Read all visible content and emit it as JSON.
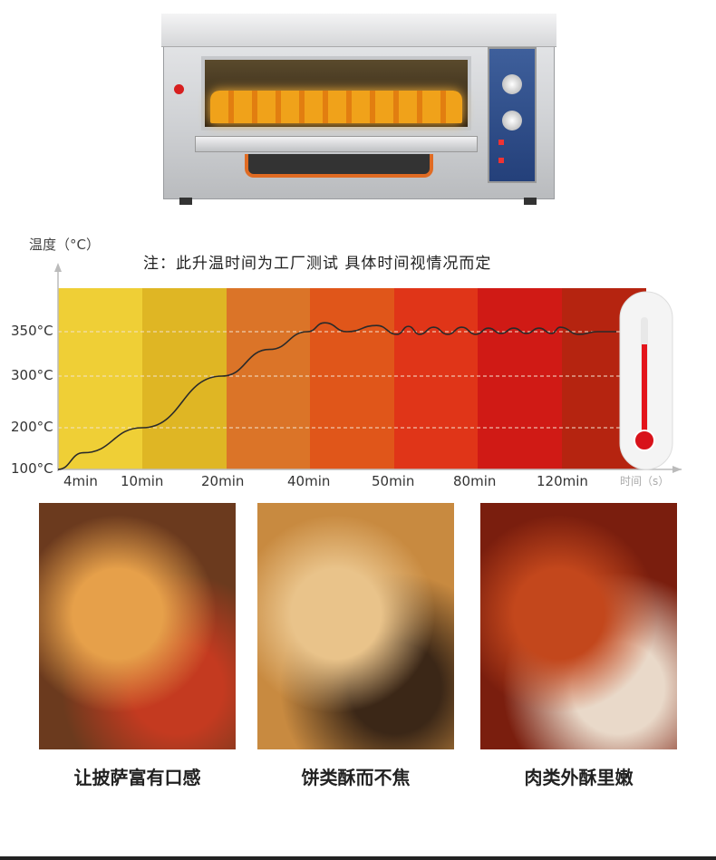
{
  "chart_data": {
    "type": "line",
    "title": "注：此升温时间为工厂测试  具体时间视情况而定",
    "ylabel": "温度（°C）",
    "xlabel": "时间（s）",
    "x_tick_labels": [
      "4min",
      "10min",
      "20min",
      "40min",
      "50min",
      "80min",
      "120min"
    ],
    "y_tick_labels": [
      "350°C",
      "300°C",
      "200°C",
      "100°C"
    ],
    "y_ticks": [
      350,
      300,
      200,
      100
    ],
    "grid": true,
    "band_colors": [
      "#efcf36",
      "#dfb624",
      "#db7428",
      "#e0561a",
      "#e03518",
      "#d01a15",
      "#b52410"
    ],
    "line_color": "#2a2a2a",
    "series": [
      {
        "x": [
          0,
          4,
          10,
          20,
          30,
          38,
          41,
          44,
          48,
          52,
          56,
          60,
          65,
          70,
          75,
          80,
          86,
          92,
          98,
          104,
          110,
          116,
          120,
          125,
          130,
          135
        ],
        "values": [
          100,
          140,
          200,
          300,
          330,
          350,
          360,
          350,
          357,
          347,
          356,
          347,
          355,
          347,
          355,
          347,
          354,
          348,
          354,
          348,
          354,
          348,
          355,
          347,
          350,
          350
        ]
      }
    ],
    "thermometer_icon": "thermometer-icon"
  },
  "photos": [
    {
      "caption": "让披萨富有口感",
      "colors": [
        "#6b3a1e",
        "#e6a04a",
        "#c43a20"
      ]
    },
    {
      "caption": "饼类酥而不焦",
      "colors": [
        "#c88a40",
        "#e9c38a",
        "#3b2717"
      ]
    },
    {
      "caption": "肉类外酥里嫩",
      "colors": [
        "#7a1e0e",
        "#c3471c",
        "#e9d9c9"
      ]
    }
  ]
}
